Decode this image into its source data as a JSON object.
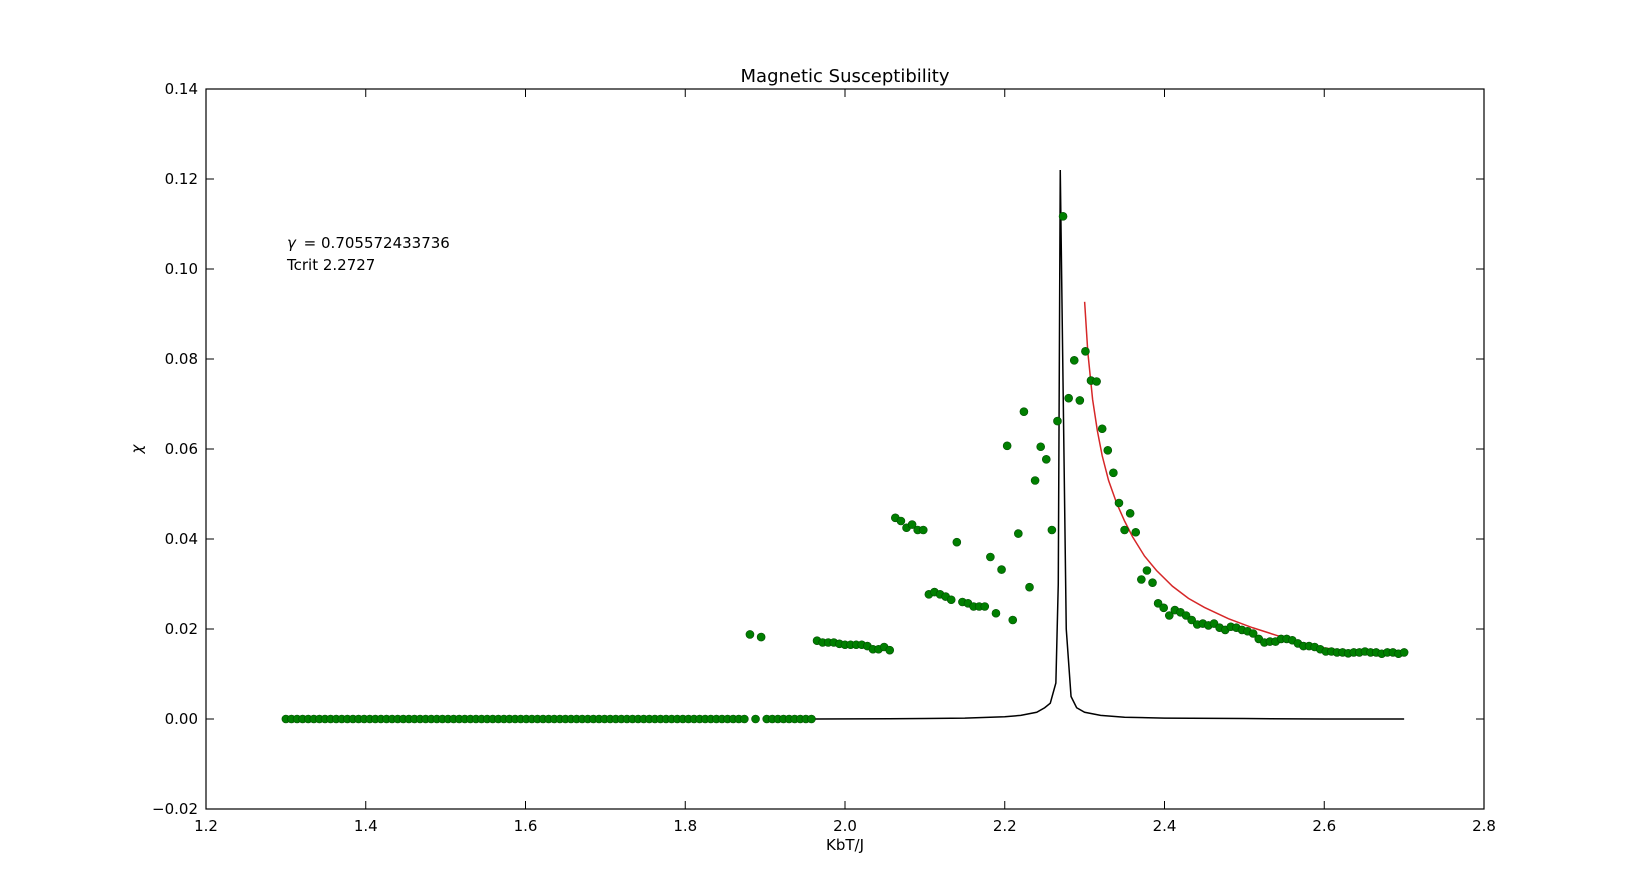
{
  "chart_data": {
    "type": "scatter",
    "title": "Magnetic Susceptibility",
    "xlabel": "KbT/J",
    "ylabel": "χ",
    "xlim": [
      1.2,
      2.8
    ],
    "ylim": [
      -0.02,
      0.14
    ],
    "xticks": [
      "1.2",
      "1.4",
      "1.6",
      "1.8",
      "2.0",
      "2.2",
      "2.4",
      "2.6",
      "2.8"
    ],
    "yticks": [
      "−0.02",
      "0.00",
      "0.02",
      "0.04",
      "0.06",
      "0.08",
      "0.10",
      "0.12",
      "0.14"
    ],
    "grid": false,
    "annotations": {
      "gamma_symbol": "γ",
      "gamma_text": "= 0.705572433736",
      "tcrit_text": "Tcrit 2.2727"
    },
    "colors": {
      "scatter": "#007f00",
      "fit": "#d62728",
      "theory": "#000000"
    },
    "series": [
      {
        "kind": "scatter",
        "points": [
          [
            1.3,
            0
          ],
          [
            1.307,
            0
          ],
          [
            1.314,
            0
          ],
          [
            1.321,
            0
          ],
          [
            1.328,
            0
          ],
          [
            1.335,
            0
          ],
          [
            1.342,
            0
          ],
          [
            1.349,
            0
          ],
          [
            1.356,
            0
          ],
          [
            1.363,
            0
          ],
          [
            1.37,
            0
          ],
          [
            1.377,
            0
          ],
          [
            1.384,
            0
          ],
          [
            1.391,
            0
          ],
          [
            1.398,
            0
          ],
          [
            1.405,
            0
          ],
          [
            1.412,
            0
          ],
          [
            1.419,
            0
          ],
          [
            1.426,
            0
          ],
          [
            1.433,
            0
          ],
          [
            1.44,
            0
          ],
          [
            1.447,
            0
          ],
          [
            1.454,
            0
          ],
          [
            1.461,
            0
          ],
          [
            1.468,
            0
          ],
          [
            1.475,
            0
          ],
          [
            1.482,
            0
          ],
          [
            1.489,
            0
          ],
          [
            1.496,
            0
          ],
          [
            1.503,
            0
          ],
          [
            1.51,
            0
          ],
          [
            1.517,
            0
          ],
          [
            1.524,
            0
          ],
          [
            1.531,
            0
          ],
          [
            1.538,
            0
          ],
          [
            1.545,
            0
          ],
          [
            1.552,
            0
          ],
          [
            1.559,
            0
          ],
          [
            1.566,
            0
          ],
          [
            1.573,
            0
          ],
          [
            1.58,
            0
          ],
          [
            1.587,
            0
          ],
          [
            1.594,
            0
          ],
          [
            1.601,
            0
          ],
          [
            1.608,
            0
          ],
          [
            1.615,
            0
          ],
          [
            1.622,
            0
          ],
          [
            1.629,
            0
          ],
          [
            1.636,
            0
          ],
          [
            1.643,
            0
          ],
          [
            1.65,
            0
          ],
          [
            1.657,
            0
          ],
          [
            1.664,
            0
          ],
          [
            1.671,
            0
          ],
          [
            1.678,
            0
          ],
          [
            1.685,
            0
          ],
          [
            1.692,
            0
          ],
          [
            1.699,
            0
          ],
          [
            1.706,
            0
          ],
          [
            1.713,
            0
          ],
          [
            1.72,
            0
          ],
          [
            1.727,
            0
          ],
          [
            1.734,
            0
          ],
          [
            1.741,
            0
          ],
          [
            1.748,
            0
          ],
          [
            1.755,
            0
          ],
          [
            1.762,
            0
          ],
          [
            1.769,
            0
          ],
          [
            1.776,
            0
          ],
          [
            1.783,
            0
          ],
          [
            1.79,
            0
          ],
          [
            1.797,
            0
          ],
          [
            1.804,
            0
          ],
          [
            1.811,
            0
          ],
          [
            1.818,
            0
          ],
          [
            1.825,
            0
          ],
          [
            1.832,
            0
          ],
          [
            1.839,
            0
          ],
          [
            1.846,
            0
          ],
          [
            1.853,
            0
          ],
          [
            1.86,
            0
          ],
          [
            1.867,
            0
          ],
          [
            1.874,
            0
          ],
          [
            1.881,
            0.0188
          ],
          [
            1.888,
            0
          ],
          [
            1.895,
            0.0182
          ],
          [
            1.902,
            0
          ],
          [
            1.909,
            0
          ],
          [
            1.916,
            0
          ],
          [
            1.923,
            0
          ],
          [
            1.93,
            0
          ],
          [
            1.937,
            0
          ],
          [
            1.944,
            0
          ],
          [
            1.951,
            0
          ],
          [
            1.958,
            0
          ],
          [
            1.965,
            0.0174
          ],
          [
            1.972,
            0.017
          ],
          [
            1.979,
            0.017
          ],
          [
            1.986,
            0.017
          ],
          [
            1.993,
            0.0167
          ],
          [
            2.0,
            0.0165
          ],
          [
            2.007,
            0.0165
          ],
          [
            2.014,
            0.0165
          ],
          [
            2.021,
            0.0165
          ],
          [
            2.028,
            0.0162
          ],
          [
            2.035,
            0.0155
          ],
          [
            2.042,
            0.0155
          ],
          [
            2.049,
            0.016
          ],
          [
            2.056,
            0.0153
          ],
          [
            2.063,
            0.0447
          ],
          [
            2.07,
            0.044
          ],
          [
            2.077,
            0.0425
          ],
          [
            2.084,
            0.0432
          ],
          [
            2.091,
            0.042
          ],
          [
            2.098,
            0.042
          ],
          [
            2.105,
            0.0277
          ],
          [
            2.112,
            0.0282
          ],
          [
            2.119,
            0.0277
          ],
          [
            2.126,
            0.0272
          ],
          [
            2.133,
            0.0265
          ],
          [
            2.14,
            0.0393
          ],
          [
            2.147,
            0.026
          ],
          [
            2.154,
            0.0257
          ],
          [
            2.161,
            0.025
          ],
          [
            2.168,
            0.025
          ],
          [
            2.175,
            0.025
          ],
          [
            2.182,
            0.036
          ],
          [
            2.189,
            0.0235
          ],
          [
            2.196,
            0.0332
          ],
          [
            2.203,
            0.0607
          ],
          [
            2.21,
            0.022
          ],
          [
            2.217,
            0.0412
          ],
          [
            2.224,
            0.0683
          ],
          [
            2.231,
            0.0293
          ],
          [
            2.238,
            0.053
          ],
          [
            2.245,
            0.0605
          ],
          [
            2.252,
            0.0577
          ],
          [
            2.259,
            0.042
          ],
          [
            2.266,
            0.0662
          ],
          [
            2.273,
            0.1117
          ],
          [
            2.28,
            0.0713
          ],
          [
            2.287,
            0.0797
          ],
          [
            2.294,
            0.0708
          ],
          [
            2.301,
            0.0817
          ],
          [
            2.308,
            0.0752
          ],
          [
            2.315,
            0.075
          ],
          [
            2.322,
            0.0645
          ],
          [
            2.329,
            0.0597
          ],
          [
            2.336,
            0.0547
          ],
          [
            2.343,
            0.048
          ],
          [
            2.35,
            0.042
          ],
          [
            2.357,
            0.0457
          ],
          [
            2.364,
            0.0415
          ],
          [
            2.371,
            0.031
          ],
          [
            2.378,
            0.033
          ],
          [
            2.385,
            0.0303
          ],
          [
            2.392,
            0.0257
          ],
          [
            2.399,
            0.0247
          ],
          [
            2.406,
            0.023
          ],
          [
            2.413,
            0.0242
          ],
          [
            2.42,
            0.0237
          ],
          [
            2.427,
            0.023
          ],
          [
            2.434,
            0.022
          ],
          [
            2.441,
            0.021
          ],
          [
            2.448,
            0.0212
          ],
          [
            2.455,
            0.0208
          ],
          [
            2.462,
            0.0212
          ],
          [
            2.469,
            0.0203
          ],
          [
            2.476,
            0.0198
          ],
          [
            2.483,
            0.0205
          ],
          [
            2.49,
            0.0203
          ],
          [
            2.497,
            0.0198
          ],
          [
            2.504,
            0.0195
          ],
          [
            2.511,
            0.019
          ],
          [
            2.518,
            0.0178
          ],
          [
            2.525,
            0.017
          ],
          [
            2.532,
            0.0172
          ],
          [
            2.539,
            0.0172
          ],
          [
            2.546,
            0.0178
          ],
          [
            2.553,
            0.0178
          ],
          [
            2.56,
            0.0175
          ],
          [
            2.567,
            0.0168
          ],
          [
            2.574,
            0.0162
          ],
          [
            2.581,
            0.0162
          ],
          [
            2.588,
            0.016
          ],
          [
            2.595,
            0.0155
          ],
          [
            2.602,
            0.015
          ],
          [
            2.609,
            0.015
          ],
          [
            2.616,
            0.0148
          ],
          [
            2.623,
            0.0148
          ],
          [
            2.63,
            0.0146
          ],
          [
            2.637,
            0.0148
          ],
          [
            2.644,
            0.0148
          ],
          [
            2.651,
            0.015
          ],
          [
            2.658,
            0.0148
          ],
          [
            2.665,
            0.0148
          ],
          [
            2.672,
            0.0145
          ],
          [
            2.679,
            0.0148
          ],
          [
            2.686,
            0.0148
          ],
          [
            2.693,
            0.0145
          ],
          [
            2.7,
            0.0148
          ]
        ]
      },
      {
        "kind": "line",
        "points": [
          [
            1.96,
            0
          ],
          [
            2.1,
            0.0001
          ],
          [
            2.15,
            0.0002
          ],
          [
            2.2,
            0.0005
          ],
          [
            2.22,
            0.0008
          ],
          [
            2.24,
            0.0015
          ],
          [
            2.25,
            0.0025
          ],
          [
            2.257,
            0.0035
          ],
          [
            2.264,
            0.008
          ],
          [
            2.267,
            0.03
          ],
          [
            2.2695,
            0.122
          ],
          [
            2.277,
            0.02
          ],
          [
            2.283,
            0.005
          ],
          [
            2.29,
            0.0025
          ],
          [
            2.3,
            0.0015
          ],
          [
            2.32,
            0.0008
          ],
          [
            2.35,
            0.0004
          ],
          [
            2.4,
            0.0002
          ],
          [
            2.5,
            0.0001
          ],
          [
            2.6,
            0
          ],
          [
            2.7,
            0
          ]
        ]
      },
      {
        "kind": "line",
        "points": [
          [
            2.3,
            0.0927
          ],
          [
            2.304,
            0.0815
          ],
          [
            2.31,
            0.071
          ],
          [
            2.316,
            0.064
          ],
          [
            2.322,
            0.0585
          ],
          [
            2.33,
            0.053
          ],
          [
            2.34,
            0.048
          ],
          [
            2.35,
            0.044
          ],
          [
            2.36,
            0.0405
          ],
          [
            2.375,
            0.0362
          ],
          [
            2.39,
            0.033
          ],
          [
            2.41,
            0.0295
          ],
          [
            2.43,
            0.0268
          ],
          [
            2.45,
            0.0248
          ],
          [
            2.48,
            0.0223
          ],
          [
            2.51,
            0.0203
          ],
          [
            2.54,
            0.0186
          ],
          [
            2.57,
            0.017
          ],
          [
            2.6,
            0.0158
          ],
          [
            2.63,
            0.015
          ],
          [
            2.67,
            0.014
          ]
        ]
      }
    ]
  }
}
